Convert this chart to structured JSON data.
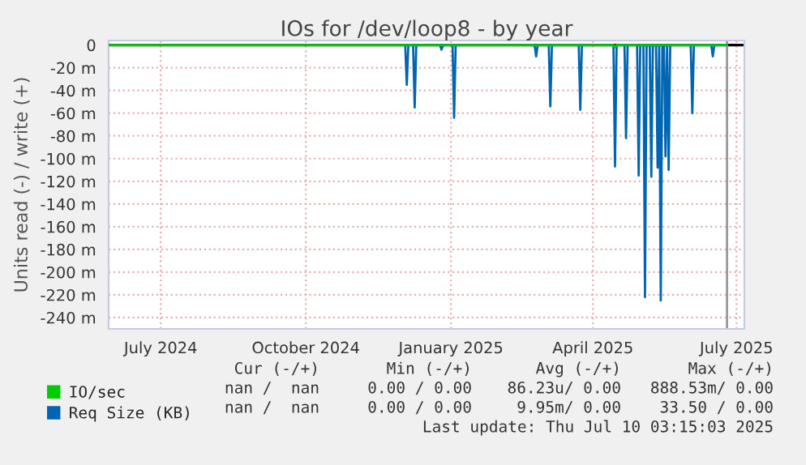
{
  "chart_data": {
    "type": "line",
    "title": "IOs for /dev/loop8 - by year",
    "ylabel": "Units read (-) / write (+)",
    "series": [
      {
        "name": "IO/sec",
        "color": "#00cc00",
        "x": [
          "2024-06-13",
          "2025-04-29",
          "2025-04-30",
          "2025-05-01",
          "2025-07-10"
        ],
        "values": [
          0,
          0,
          -2,
          0,
          0
        ]
      },
      {
        "name": "Req Size (KB)",
        "color": "#0066b3",
        "x": [
          "2024-06-13",
          "2024-12-18",
          "2024-12-19",
          "2024-12-20",
          "2024-12-23",
          "2024-12-24",
          "2024-12-25",
          "2025-01-09",
          "2025-01-10",
          "2025-01-11",
          "2025-01-17",
          "2025-01-18",
          "2025-01-19",
          "2025-03-10",
          "2025-03-11",
          "2025-03-12",
          "2025-03-19",
          "2025-03-20",
          "2025-03-21",
          "2025-04-07",
          "2025-04-08",
          "2025-04-09",
          "2025-04-29",
          "2025-04-30",
          "2025-05-01",
          "2025-05-06",
          "2025-05-07",
          "2025-05-08",
          "2025-05-14",
          "2025-05-15",
          "2025-05-16",
          "2025-05-18",
          "2025-05-19",
          "2025-05-20",
          "2025-05-22",
          "2025-05-23",
          "2025-05-24",
          "2025-05-26",
          "2025-05-27",
          "2025-05-28",
          "2025-05-29",
          "2025-05-30",
          "2025-05-31",
          "2025-06-01",
          "2025-06-02",
          "2025-06-03",
          "2025-06-04",
          "2025-06-17",
          "2025-06-18",
          "2025-06-19",
          "2025-06-30",
          "2025-07-01",
          "2025-07-02",
          "2025-07-10"
        ],
        "values": [
          0,
          0,
          -35,
          0,
          0,
          -55,
          0,
          0,
          -4,
          0,
          0,
          -64,
          0,
          0,
          -10,
          0,
          0,
          -54,
          0,
          0,
          -57,
          0,
          0,
          -107,
          0,
          0,
          -82,
          0,
          0,
          -115,
          0,
          0,
          -222,
          0,
          0,
          -116,
          0,
          0,
          -108,
          0,
          -225,
          0,
          0,
          -98,
          0,
          -110,
          0,
          0,
          -60,
          0,
          0,
          -10,
          0,
          0
        ]
      }
    ],
    "xlim": [
      "2024-06-13",
      "2025-07-21"
    ],
    "ylim": [
      -250,
      4
    ],
    "xticks": [
      {
        "value": "2024-07-16",
        "label": "July 2024"
      },
      {
        "value": "2024-10-16",
        "label": "October 2024"
      },
      {
        "value": "2025-01-16",
        "label": "January 2025"
      },
      {
        "value": "2025-04-16",
        "label": "April 2025"
      },
      {
        "value": "2025-07-16",
        "label": "July 2025"
      }
    ],
    "yticks": [
      0,
      {
        "value": -20,
        "label": "-20 m"
      },
      {
        "value": -40,
        "label": "-40 m"
      },
      {
        "value": -60,
        "label": "-60 m"
      },
      {
        "value": -80,
        "label": "-80 m"
      },
      {
        "value": -100,
        "label": "-100 m"
      },
      {
        "value": -120,
        "label": "-120 m"
      },
      {
        "value": -140,
        "label": "-140 m"
      },
      {
        "value": -160,
        "label": "-160 m"
      },
      {
        "value": -180,
        "label": "-180 m"
      },
      {
        "value": -200,
        "label": "-200 m"
      },
      {
        "value": -220,
        "label": "-220 m"
      },
      {
        "value": -240,
        "label": "-240 m"
      }
    ],
    "ref_lines": [
      {
        "axis": "y",
        "value": 0,
        "color": "#000000"
      },
      {
        "axis": "x",
        "value": "2025-07-10",
        "color": "#999999"
      }
    ],
    "grid": true,
    "legend": "bottom left",
    "marker": "none",
    "line_style": "solid",
    "annotations": [
      "Cur (-/+)",
      "Min (-/+)",
      "Avg (-/+)",
      "Max (-/+)",
      "nan /  nan",
      "0.00 / 0.00",
      "86.23u/ 0.00",
      "888.53m/ 0.00",
      "nan /  nan",
      "0.00 / 0.00",
      "9.95m/ 0.00",
      "33.50 / 0.00",
      "Last update: Thu Jul 10 03:15:03 2025"
    ]
  }
}
